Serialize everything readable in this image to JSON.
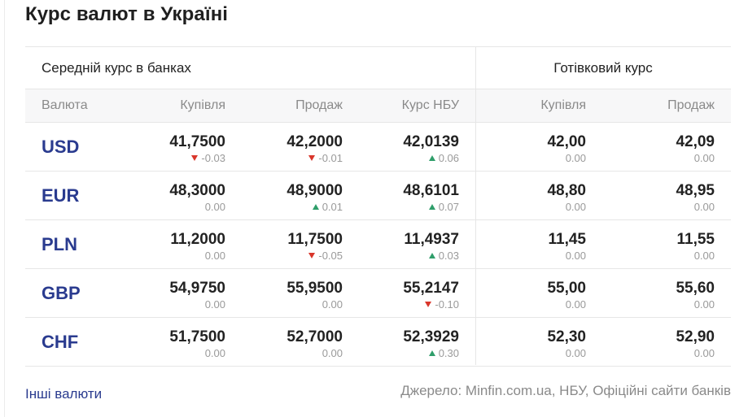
{
  "title": "Курс валют в Україні",
  "groups": {
    "banks": "Середній курс в банках",
    "cash": "Готівковий курс"
  },
  "columns": {
    "currency": "Валюта",
    "buy": "Купівля",
    "sell": "Продаж",
    "nbu": "Курс НБУ",
    "cash_buy": "Купівля",
    "cash_sell": "Продаж"
  },
  "rows": [
    {
      "code": "USD",
      "buy": {
        "v": "41,7500",
        "d": "-0.03",
        "dir": "down"
      },
      "sell": {
        "v": "42,2000",
        "d": "-0.01",
        "dir": "down"
      },
      "nbu": {
        "v": "42,0139",
        "d": "0.06",
        "dir": "up"
      },
      "cash_buy": {
        "v": "42,00",
        "d": "0.00",
        "dir": ""
      },
      "cash_sell": {
        "v": "42,09",
        "d": "0.00",
        "dir": ""
      }
    },
    {
      "code": "EUR",
      "buy": {
        "v": "48,3000",
        "d": "0.00",
        "dir": ""
      },
      "sell": {
        "v": "48,9000",
        "d": "0.01",
        "dir": "up"
      },
      "nbu": {
        "v": "48,6101",
        "d": "0.07",
        "dir": "up"
      },
      "cash_buy": {
        "v": "48,80",
        "d": "0.00",
        "dir": ""
      },
      "cash_sell": {
        "v": "48,95",
        "d": "0.00",
        "dir": ""
      }
    },
    {
      "code": "PLN",
      "buy": {
        "v": "11,2000",
        "d": "0.00",
        "dir": ""
      },
      "sell": {
        "v": "11,7500",
        "d": "-0.05",
        "dir": "down"
      },
      "nbu": {
        "v": "11,4937",
        "d": "0.03",
        "dir": "up"
      },
      "cash_buy": {
        "v": "11,45",
        "d": "0.00",
        "dir": ""
      },
      "cash_sell": {
        "v": "11,55",
        "d": "0.00",
        "dir": ""
      }
    },
    {
      "code": "GBP",
      "buy": {
        "v": "54,9750",
        "d": "0.00",
        "dir": ""
      },
      "sell": {
        "v": "55,9500",
        "d": "0.00",
        "dir": ""
      },
      "nbu": {
        "v": "55,2147",
        "d": "-0.10",
        "dir": "down"
      },
      "cash_buy": {
        "v": "55,00",
        "d": "0.00",
        "dir": ""
      },
      "cash_sell": {
        "v": "55,60",
        "d": "0.00",
        "dir": ""
      }
    },
    {
      "code": "CHF",
      "buy": {
        "v": "51,7500",
        "d": "0.00",
        "dir": ""
      },
      "sell": {
        "v": "52,7000",
        "d": "0.00",
        "dir": ""
      },
      "nbu": {
        "v": "52,3929",
        "d": "0.30",
        "dir": "up"
      },
      "cash_buy": {
        "v": "52,30",
        "d": "0.00",
        "dir": ""
      },
      "cash_sell": {
        "v": "52,90",
        "d": "0.00",
        "dir": ""
      }
    }
  ],
  "footer": {
    "link": "Інші валюти",
    "source": "Джерело: Minfin.com.ua, НБУ, Офіційні сайти банків"
  },
  "colors": {
    "accent": "#2a3b8f",
    "up": "#2f9e6a",
    "down": "#d9362b"
  }
}
